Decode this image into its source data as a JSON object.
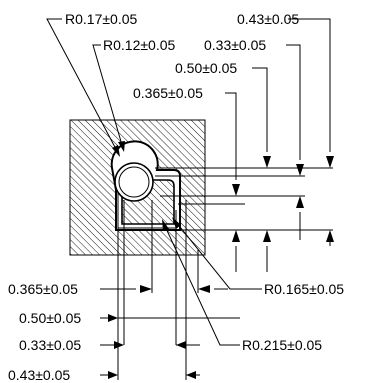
{
  "labels": {
    "r_017": "R0.17±0.05",
    "r_012": "R0.12±0.05",
    "top_043": "0.43±0.05",
    "top_033": "0.33±0.05",
    "top_050": "0.50±0.05",
    "top_0365": "0.365±0.05",
    "bottom_0365": "0.365±0.05",
    "bottom_050": "0.50±0.05",
    "bottom_033": "0.33±0.05",
    "bottom_043": "0.43±0.05",
    "r_0165": "R0.165±0.05",
    "r_0215": "R0.215±0.05"
  },
  "colors": {
    "line": "#000000",
    "background": "#ffffff"
  }
}
